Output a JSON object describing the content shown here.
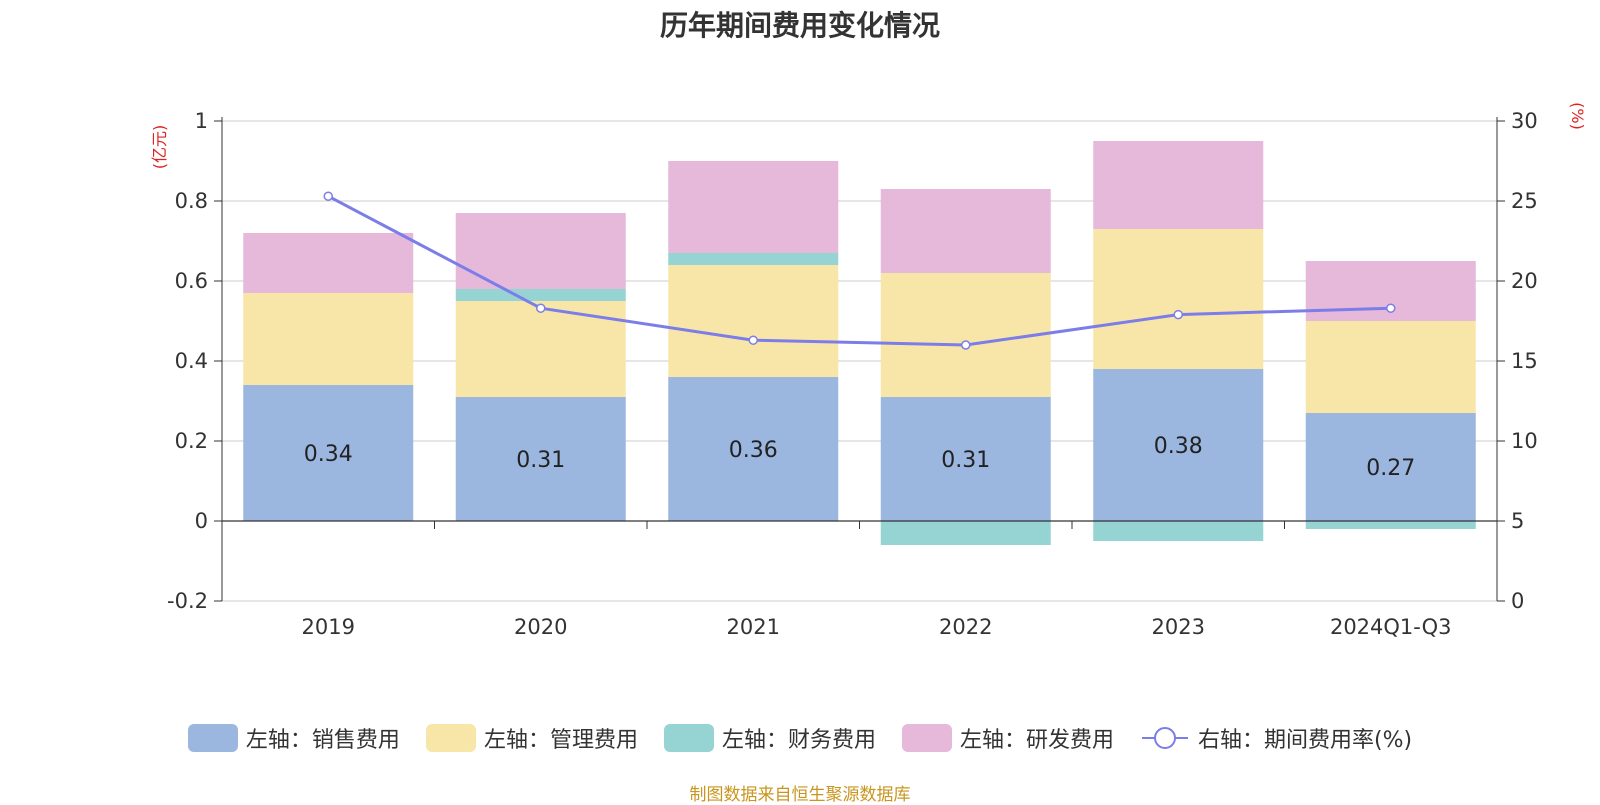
{
  "chart_data": {
    "type": "bar",
    "title": "历年期间费用变化情况",
    "categories": [
      "2019",
      "2020",
      "2021",
      "2022",
      "2023",
      "2024Q1-Q3"
    ],
    "left_axis": {
      "label": "(亿元)",
      "ylim": [
        -0.2,
        1
      ],
      "ticks": [
        "-0.2",
        "0",
        "0.2",
        "0.4",
        "0.6",
        "0.8",
        "1"
      ],
      "tick_values": [
        -0.2,
        0,
        0.2,
        0.4,
        0.6,
        0.8,
        1
      ]
    },
    "right_axis": {
      "label": "(%)",
      "ylim": [
        0,
        30
      ],
      "ticks": [
        "0",
        "5",
        "10",
        "15",
        "20",
        "25",
        "30"
      ],
      "tick_values": [
        0,
        5,
        10,
        15,
        20,
        25,
        30
      ]
    },
    "series": [
      {
        "name": "左轴：销售费用",
        "axis": "left",
        "kind": "bar",
        "color": "#9bb7e0",
        "values": [
          0.34,
          0.31,
          0.36,
          0.31,
          0.38,
          0.27
        ],
        "data_labels": [
          "0.34",
          "0.31",
          "0.36",
          "0.31",
          "0.38",
          "0.27"
        ]
      },
      {
        "name": "左轴：管理费用",
        "axis": "left",
        "kind": "bar",
        "color": "#f8e6a8",
        "values": [
          0.23,
          0.24,
          0.28,
          0.31,
          0.35,
          0.23
        ]
      },
      {
        "name": "左轴：财务费用",
        "axis": "left",
        "kind": "bar",
        "color": "#95d4d3",
        "values": [
          0.0,
          0.03,
          0.03,
          -0.06,
          -0.05,
          -0.02
        ]
      },
      {
        "name": "左轴：研发费用",
        "axis": "left",
        "kind": "bar",
        "color": "#e6b8da",
        "values": [
          0.15,
          0.19,
          0.23,
          0.21,
          0.22,
          0.15
        ]
      },
      {
        "name": "右轴：期间费用率(%)",
        "axis": "right",
        "kind": "line",
        "color": "#7b7de8",
        "values": [
          25.3,
          18.3,
          16.3,
          16.0,
          17.9,
          18.3
        ]
      }
    ],
    "grid": true
  },
  "source": "制图数据来自恒生聚源数据库"
}
